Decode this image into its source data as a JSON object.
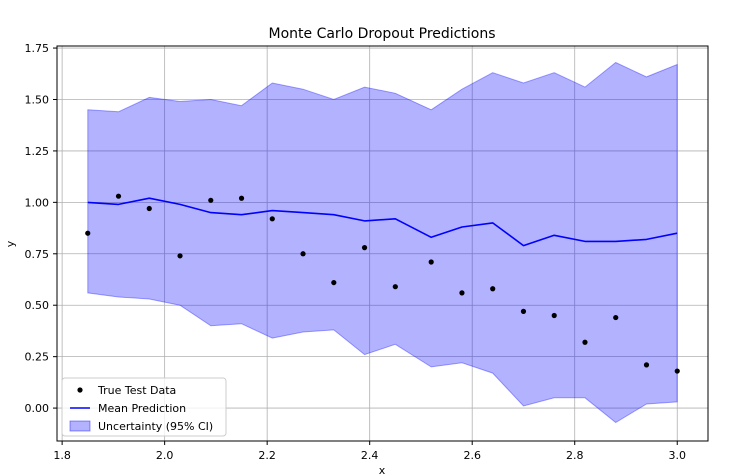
{
  "chart_data": {
    "type": "line",
    "title": "Monte Carlo Dropout Predictions",
    "xlabel": "x",
    "ylabel": "y",
    "xlim": [
      1.79,
      3.06
    ],
    "ylim": [
      -0.16,
      1.76
    ],
    "xticks": [
      1.8,
      2.0,
      2.2,
      2.4,
      2.6,
      2.8,
      3.0
    ],
    "xtick_labels": [
      "1.8",
      "2.0",
      "2.2",
      "2.4",
      "2.6",
      "2.8",
      "3.0"
    ],
    "yticks": [
      0.0,
      0.25,
      0.5,
      0.75,
      1.0,
      1.25,
      1.5,
      1.75
    ],
    "ytick_labels": [
      "0.00",
      "0.25",
      "0.50",
      "0.75",
      "1.00",
      "1.25",
      "1.50",
      "1.75"
    ],
    "grid": true,
    "legend_position": "lower-left",
    "x": [
      1.85,
      1.91,
      1.97,
      2.03,
      2.09,
      2.15,
      2.21,
      2.27,
      2.33,
      2.39,
      2.45,
      2.52,
      2.58,
      2.64,
      2.7,
      2.76,
      2.82,
      2.88,
      2.94,
      3.0
    ],
    "series": [
      {
        "name": "True Test Data",
        "kind": "scatter",
        "color": "#000000",
        "values": [
          0.85,
          1.03,
          0.97,
          0.74,
          1.01,
          1.02,
          0.92,
          0.75,
          0.61,
          0.78,
          0.59,
          0.71,
          0.56,
          0.58,
          0.47,
          0.45,
          0.32,
          0.44,
          0.21,
          0.18
        ]
      },
      {
        "name": "Mean Prediction",
        "kind": "line",
        "color": "#0000ff",
        "values": [
          1.0,
          0.99,
          1.02,
          0.99,
          0.95,
          0.94,
          0.96,
          0.95,
          0.94,
          0.91,
          0.92,
          0.83,
          0.88,
          0.9,
          0.79,
          0.84,
          0.81,
          0.81,
          0.82,
          0.85
        ]
      },
      {
        "name": "Uncertainty (95% CI)",
        "kind": "band",
        "color": "#0000ff",
        "opacity": 0.3,
        "upper": [
          1.45,
          1.44,
          1.51,
          1.49,
          1.5,
          1.47,
          1.58,
          1.55,
          1.5,
          1.56,
          1.53,
          1.45,
          1.55,
          1.63,
          1.58,
          1.63,
          1.56,
          1.68,
          1.61,
          1.67
        ],
        "lower": [
          0.56,
          0.54,
          0.53,
          0.5,
          0.4,
          0.41,
          0.34,
          0.37,
          0.38,
          0.26,
          0.31,
          0.2,
          0.22,
          0.17,
          0.01,
          0.05,
          0.05,
          -0.07,
          0.02,
          0.03
        ]
      }
    ]
  }
}
